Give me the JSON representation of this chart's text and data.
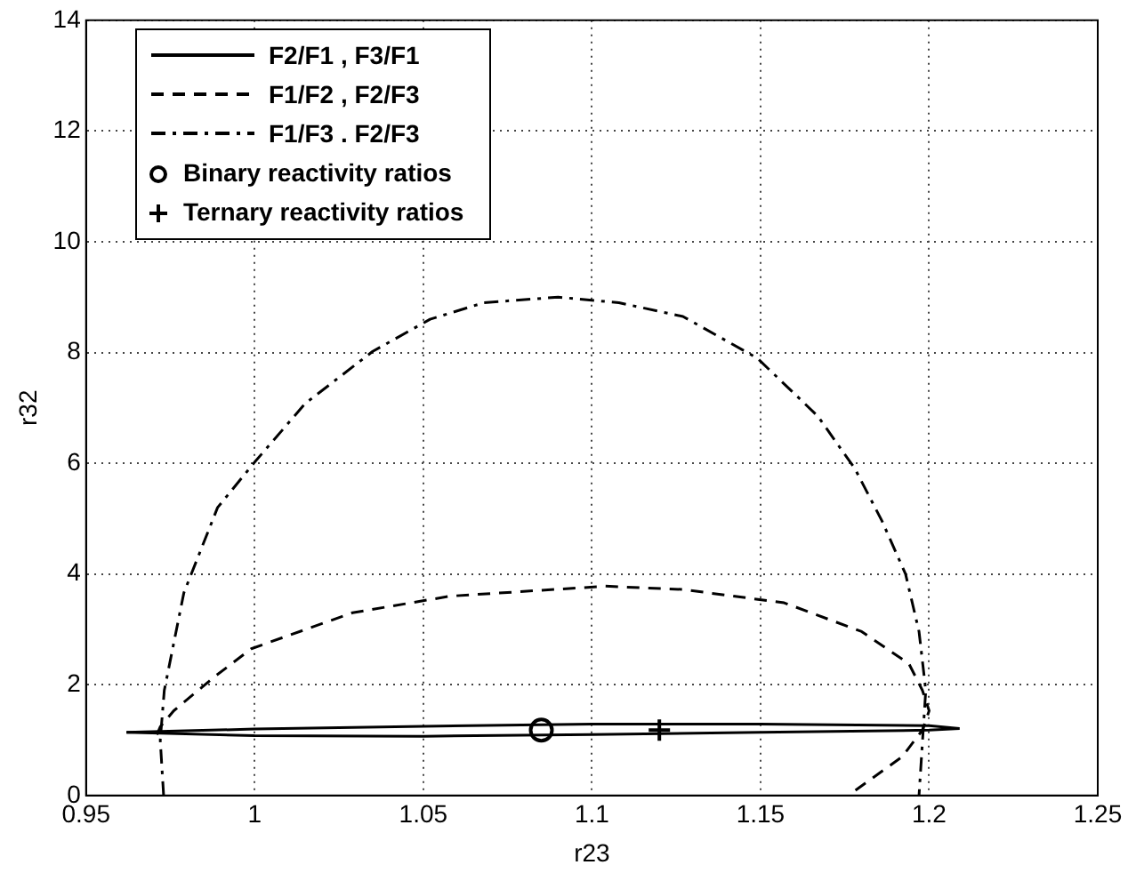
{
  "chart_data": {
    "type": "line",
    "xlabel": "r23",
    "ylabel": "r32",
    "xlim": [
      0.95,
      1.25
    ],
    "xticks": [
      0.95,
      1,
      1.05,
      1.1,
      1.15,
      1.2,
      1.25
    ],
    "ylim": [
      0,
      14
    ],
    "yticks": [
      0,
      2,
      4,
      6,
      8,
      10,
      12,
      14
    ],
    "grid": true,
    "legend": "top left",
    "series": [
      {
        "name": "F2/F1 , F3/F1",
        "type": "line",
        "line_style": "solid",
        "color": "#000000",
        "x": [
          0.962,
          1.0,
          1.05,
          1.1,
          1.15,
          1.2,
          1.209
        ],
        "values": [
          1.14,
          1.2,
          1.25,
          1.29,
          1.29,
          1.26,
          1.21
        ]
      },
      {
        "type": "line",
        "line_style": "solid",
        "color": "#000000",
        "x": [
          0.962,
          1.0,
          1.05,
          1.1,
          1.15,
          1.2,
          1.209
        ],
        "values": [
          1.14,
          1.08,
          1.07,
          1.1,
          1.14,
          1.18,
          1.21
        ]
      },
      {
        "name": "F1/F2 , F2/F3",
        "type": "line",
        "line_style": "dashed",
        "color": "#000000",
        "x": [
          0.971,
          0.972,
          0.976,
          0.988,
          0.999,
          1.029,
          1.058,
          1.104,
          1.127,
          1.157,
          1.18,
          1.194,
          1.198,
          1.2,
          1.198,
          1.192,
          1.176
        ],
        "values": [
          1.1,
          1.24,
          1.53,
          2.14,
          2.65,
          3.3,
          3.6,
          3.78,
          3.72,
          3.48,
          2.96,
          2.38,
          1.9,
          1.53,
          1.18,
          0.7,
          0
        ]
      },
      {
        "name": "F1/F3 . F2/F3",
        "type": "line",
        "line_style": "dashdot",
        "color": "#000000",
        "x": [
          0.973,
          0.972,
          0.9732,
          0.979,
          0.989,
          1.0,
          1.015,
          1.035,
          1.052,
          1.068,
          1.09,
          1.108,
          1.127,
          1.149,
          1.167,
          1.178,
          1.186,
          1.193,
          1.197,
          1.199,
          1.197
        ],
        "values": [
          0,
          1.0,
          1.9,
          3.66,
          5.2,
          6.02,
          7.08,
          8.02,
          8.6,
          8.9,
          9.0,
          8.9,
          8.65,
          7.9,
          6.85,
          5.9,
          4.96,
          4.0,
          2.96,
          1.9,
          0
        ]
      },
      {
        "name": "Binary reactivity ratios",
        "type": "scatter",
        "marker": "circle",
        "color": "#000000",
        "x": [
          1.085
        ],
        "values": [
          1.18
        ]
      },
      {
        "name": "Ternary reactivity ratios",
        "type": "scatter",
        "marker": "cross",
        "color": "#000000",
        "x": [
          1.12
        ],
        "values": [
          1.18
        ]
      }
    ]
  }
}
